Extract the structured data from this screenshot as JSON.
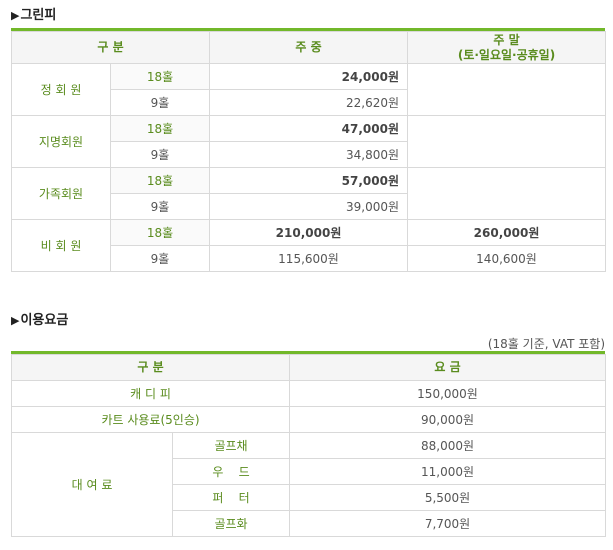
{
  "greenfee": {
    "title": "그린피",
    "headers": {
      "category": "구 분",
      "weekday": "주 중",
      "weekend": "주 말",
      "weekend_sub": "(토·일요일·공휴일)"
    },
    "groups": [
      {
        "name": "정 회 원",
        "rows": [
          {
            "holes": "18홀",
            "weekday": "24,000원",
            "weekend": ""
          },
          {
            "holes": "9홀",
            "weekday": "22,620원",
            "weekend": ""
          }
        ]
      },
      {
        "name": "지명회원",
        "rows": [
          {
            "holes": "18홀",
            "weekday": "47,000원",
            "weekend": ""
          },
          {
            "holes": "9홀",
            "weekday": "34,800원",
            "weekend": ""
          }
        ]
      },
      {
        "name": "가족회원",
        "rows": [
          {
            "holes": "18홀",
            "weekday": "57,000원",
            "weekend": ""
          },
          {
            "holes": "9홀",
            "weekday": "39,000원",
            "weekend": ""
          }
        ]
      },
      {
        "name": "비 회 원",
        "rows": [
          {
            "holes": "18홀",
            "weekday": "210,000원",
            "weekend": "260,000원"
          },
          {
            "holes": "9홀",
            "weekday": "115,600원",
            "weekend": "140,600원"
          }
        ]
      }
    ]
  },
  "usage": {
    "title": "이용요금",
    "note": "(18홀 기준, VAT 포함)",
    "headers": {
      "category": "구 분",
      "fee": "요 금"
    },
    "caddie": {
      "label": "캐 디 피",
      "value": "150,000원"
    },
    "cart": {
      "label": "카트 사용료(5인승)",
      "value": "90,000원"
    },
    "rental": {
      "label": "대 여 료",
      "items": [
        {
          "name": "골프채",
          "value": "88,000원"
        },
        {
          "name": "우    드",
          "value": "11,000원"
        },
        {
          "name": "퍼    터",
          "value": "5,500원"
        },
        {
          "name": "골프화",
          "value": "7,700원"
        }
      ]
    }
  },
  "colors": {
    "accent": "#72b82a",
    "label_green": "#5a8c1e",
    "header_bg": "#f5f5f5",
    "border": "#d9d9d9"
  }
}
